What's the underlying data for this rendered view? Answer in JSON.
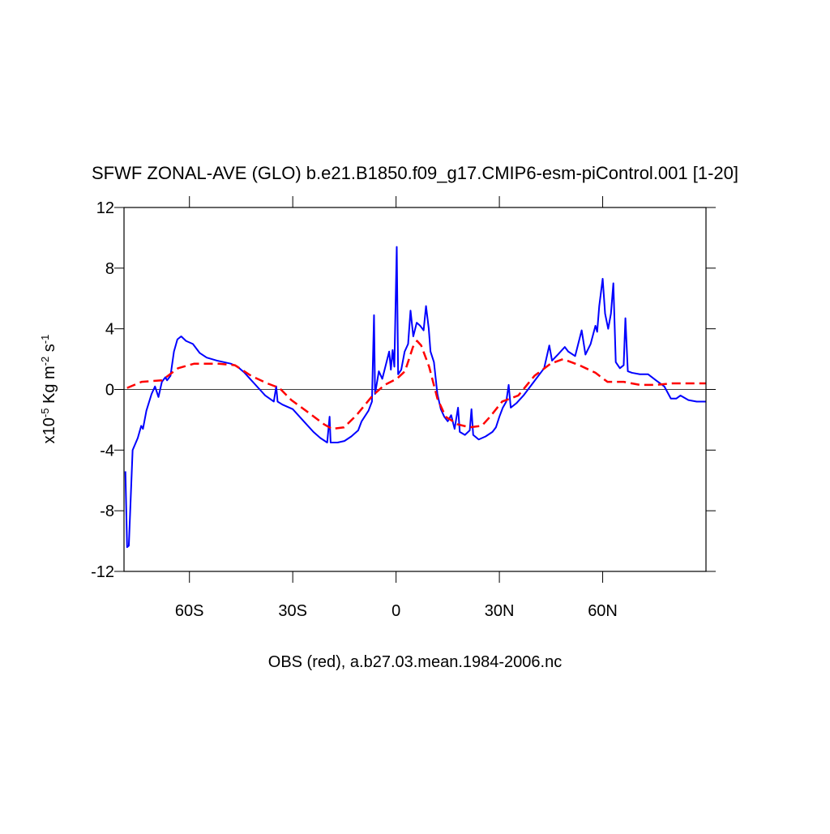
{
  "chart_data": {
    "type": "line",
    "title": "SFWF ZONAL-AVE (GLO) b.e21.B1850.f09_g17.CMIP6-esm-piControl.001 [1-20]",
    "xlabel": "OBS (red), a.b27.03.mean.1984-2006.nc",
    "ylabel_parts": [
      "x10",
      "-5",
      " Kg m",
      "-2",
      " s",
      "-1"
    ],
    "xlim": [
      -79,
      90
    ],
    "ylim": [
      -12,
      12
    ],
    "xticks": [
      {
        "value": -60,
        "label": "60S"
      },
      {
        "value": -30,
        "label": "30S"
      },
      0,
      {
        "value": 30,
        "label": "30N"
      },
      {
        "value": 60,
        "label": "60N"
      }
    ],
    "yticks": [
      -12,
      -8,
      -4,
      0,
      4,
      8,
      12
    ],
    "reference_line": 0,
    "series": [
      {
        "color": "#0000ff",
        "dash": false,
        "x": [
          -78.6,
          -78.1,
          -77.6,
          -76.5,
          -75,
          -74,
          -73.5,
          -72.5,
          -71,
          -70,
          -69,
          -68,
          -67,
          -66.5,
          -65.5,
          -64.5,
          -63.5,
          -62.4,
          -61,
          -59,
          -57,
          -55,
          -52,
          -48,
          -46,
          -44,
          -42,
          -40,
          -38,
          -35.5,
          -34.8,
          -34.4,
          -33,
          -30,
          -28,
          -26,
          -24,
          -22,
          -20,
          -19.3,
          -19,
          -17,
          -15,
          -13,
          -11,
          -10,
          -8,
          -7,
          -6.4,
          -6.1,
          -5,
          -4,
          -3,
          -2,
          -1.5,
          -1,
          -0.5,
          0.2,
          0.6,
          1.5,
          2.5,
          3.5,
          4.2,
          5,
          6,
          7,
          8,
          8.7,
          9.5,
          10,
          11,
          12,
          13,
          14,
          15,
          16,
          17,
          18,
          18.5,
          20,
          21.4,
          21.9,
          22.4,
          24,
          26,
          28,
          29,
          30,
          31,
          32,
          32.7,
          33.3,
          35,
          37,
          39,
          41,
          43,
          44.5,
          45.3,
          47,
          49,
          50,
          52,
          53.9,
          55,
          56.5,
          57.9,
          58.4,
          59,
          60,
          60.7,
          61.6,
          62.4,
          63.1,
          63.8,
          65,
          66.1,
          66.6,
          67.3,
          68.5,
          70.8,
          73.2,
          75.5,
          77.9,
          79.8,
          81.4,
          82.6,
          84.9,
          87.3,
          90
        ],
        "values": [
          -5.4,
          -10.4,
          -10.3,
          -4.0,
          -3.2,
          -2.4,
          -2.6,
          -1.4,
          -0.3,
          0.2,
          -0.5,
          0.5,
          0.8,
          0.6,
          0.9,
          2.5,
          3.3,
          3.5,
          3.2,
          3.0,
          2.4,
          2.1,
          1.9,
          1.7,
          1.5,
          1.1,
          0.6,
          0.1,
          -0.4,
          -0.8,
          0.2,
          -0.8,
          -1.0,
          -1.3,
          -1.8,
          -2.3,
          -2.8,
          -3.2,
          -3.5,
          -1.8,
          -3.5,
          -3.5,
          -3.4,
          -3.1,
          -2.7,
          -2.1,
          -1.4,
          -0.8,
          4.9,
          -0.3,
          1.2,
          0.7,
          1.6,
          2.5,
          1.3,
          2.6,
          1.5,
          9.4,
          1.0,
          1.3,
          2.5,
          3.0,
          5.2,
          3.5,
          4.4,
          4.2,
          3.9,
          5.5,
          4.0,
          2.5,
          1.8,
          -0.3,
          -1.3,
          -1.8,
          -2.1,
          -1.7,
          -2.6,
          -1.2,
          -2.8,
          -3.0,
          -2.7,
          -1.3,
          -3.0,
          -3.3,
          -3.1,
          -2.8,
          -2.5,
          -1.8,
          -1.2,
          -0.8,
          0.3,
          -1.2,
          -0.9,
          -0.4,
          0.2,
          0.8,
          1.4,
          2.9,
          1.9,
          2.3,
          2.8,
          2.5,
          2.2,
          3.9,
          2.3,
          3.0,
          4.2,
          3.8,
          5.5,
          7.3,
          5.0,
          4.0,
          5.0,
          7.0,
          1.8,
          1.4,
          1.6,
          4.7,
          1.2,
          1.1,
          1.0,
          1.0,
          0.6,
          0.2,
          -0.6,
          -0.6,
          -0.4,
          -0.7,
          -0.8,
          -0.8
        ]
      },
      {
        "color": "#ff0000",
        "dash": true,
        "x": [
          -78.1,
          -73.9,
          -68,
          -63.3,
          -58.6,
          -51.5,
          -46.8,
          -42.1,
          -37.4,
          -33.9,
          -30.4,
          -25.6,
          -20.9,
          -18.6,
          -15.1,
          -11.5,
          -6.8,
          -3.3,
          0.2,
          2.6,
          4.9,
          6.1,
          7.3,
          9.6,
          12,
          14.4,
          17.9,
          21.4,
          24.9,
          27.3,
          30.8,
          35.5,
          40.2,
          44.9,
          48.5,
          53.2,
          57.9,
          61.4,
          66.1,
          70.8,
          75.5,
          80.2,
          90
        ],
        "values": [
          0.1,
          0.5,
          0.6,
          1.4,
          1.7,
          1.7,
          1.6,
          0.9,
          0.4,
          0.1,
          -0.7,
          -1.5,
          -2.3,
          -2.6,
          -2.5,
          -1.7,
          -0.4,
          0.3,
          0.7,
          1.2,
          2.8,
          3.2,
          2.9,
          1.5,
          -0.6,
          -1.8,
          -2.3,
          -2.5,
          -2.4,
          -1.8,
          -0.8,
          -0.4,
          0.9,
          1.7,
          2.0,
          1.6,
          1.1,
          0.5,
          0.5,
          0.3,
          0.3,
          0.4,
          0.4
        ]
      }
    ]
  }
}
